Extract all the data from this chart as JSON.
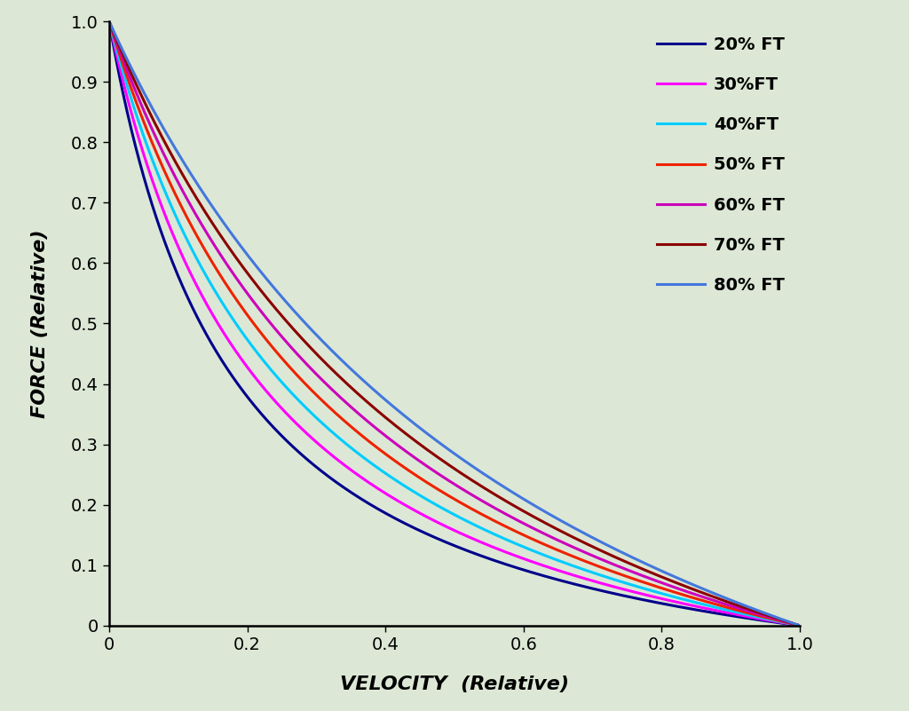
{
  "background_color": "#dce8d5",
  "title": "",
  "xlabel": "VELOCITY  (Relative)",
  "ylabel": "FORCE (Relative)",
  "xlim": [
    0,
    1
  ],
  "ylim": [
    0,
    1
  ],
  "xticks": [
    0,
    0.2,
    0.4,
    0.6,
    0.8,
    1.0
  ],
  "yticks": [
    0,
    0.1,
    0.2,
    0.3,
    0.4,
    0.5,
    0.6,
    0.7,
    0.8,
    0.9,
    1.0
  ],
  "series": [
    {
      "label": "20% FT",
      "color": "#00008B",
      "a": 0.18
    },
    {
      "label": "30%FT",
      "color": "#FF00FF",
      "a": 0.23
    },
    {
      "label": "40%FT",
      "color": "#00CCFF",
      "a": 0.29
    },
    {
      "label": "50% FT",
      "color": "#EE2200",
      "a": 0.36
    },
    {
      "label": "60% FT",
      "color": "#CC00BB",
      "a": 0.44
    },
    {
      "label": "70% FT",
      "color": "#8B0000",
      "a": 0.54
    },
    {
      "label": "80% FT",
      "color": "#4477DD",
      "a": 0.66
    }
  ],
  "xlabel_fontsize": 16,
  "ylabel_fontsize": 16,
  "tick_fontsize": 14,
  "legend_fontsize": 14,
  "line_width": 2.2,
  "figsize": [
    10.24,
    8.01
  ],
  "dpi": 100
}
